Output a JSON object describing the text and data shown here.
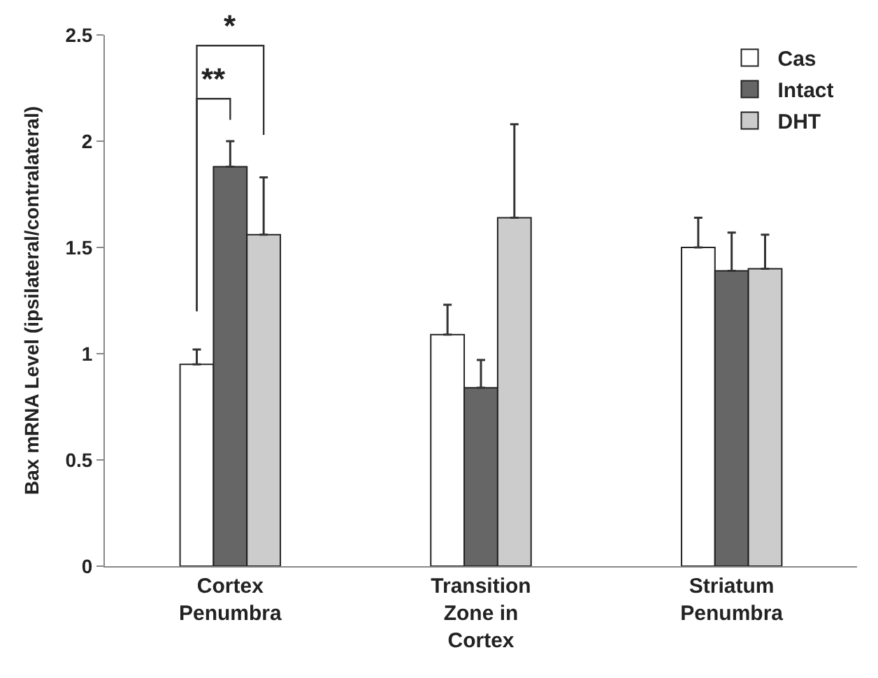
{
  "chart_data": {
    "type": "bar",
    "ylabel": "Bax mRNA Level (ipsilateral/contralateral)",
    "categories": [
      "Cortex\nPenumbra",
      "Transition\nZone in\nCortex",
      "Striatum\nPenumbra"
    ],
    "series": [
      {
        "name": "Cas",
        "color": "#ffffff",
        "values": [
          0.95,
          1.09,
          1.5
        ],
        "errors": [
          [
            0.95,
            1.02
          ],
          [
            1.09,
            1.23
          ],
          [
            1.5,
            1.64
          ]
        ]
      },
      {
        "name": "Intact",
        "color": "#666666",
        "values": [
          1.88,
          0.84,
          1.39
        ],
        "errors": [
          [
            1.88,
            2.0
          ],
          [
            0.84,
            0.97
          ],
          [
            1.39,
            1.57
          ]
        ]
      },
      {
        "name": "DHT",
        "color": "#cccccc",
        "values": [
          1.56,
          1.64,
          1.4
        ],
        "errors": [
          [
            1.56,
            1.83
          ],
          [
            1.64,
            2.08
          ],
          [
            1.4,
            1.56
          ]
        ]
      }
    ],
    "ylim": [
      0,
      2.5
    ],
    "yticks": [
      0,
      0.5,
      1,
      1.5,
      2,
      2.5
    ],
    "annotations": [
      "**",
      "*"
    ],
    "legend": "top right"
  }
}
